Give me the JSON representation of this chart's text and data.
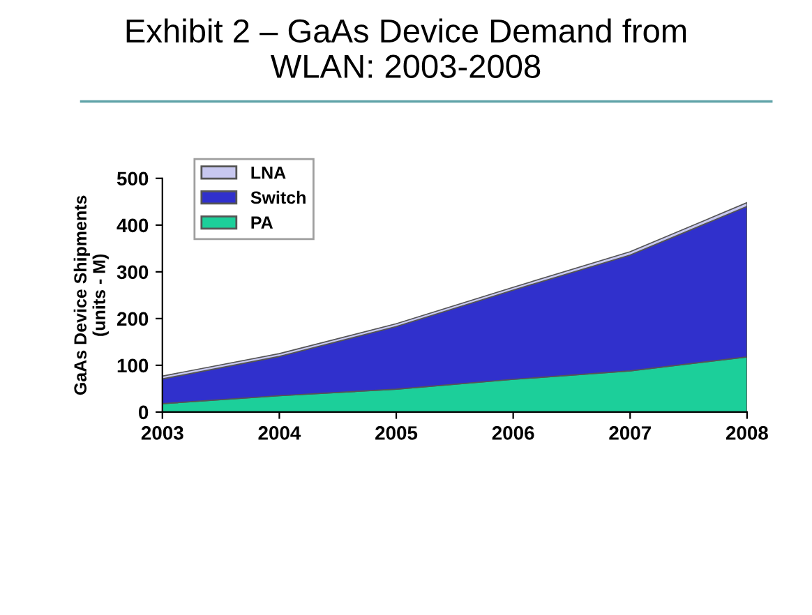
{
  "chart_data": {
    "type": "area",
    "stacked": true,
    "title": "Exhibit 2 – GaAs Device Demand from\nWLAN: 2003-2008",
    "ylabel": "GaAs Device Shipments\n(units - M)",
    "categories": [
      "2003",
      "2004",
      "2005",
      "2006",
      "2007",
      "2008"
    ],
    "series": [
      {
        "name": "PA",
        "color": "#1ccf9a",
        "values": [
          18,
          35,
          49,
          70,
          88,
          118
        ]
      },
      {
        "name": "Switch",
        "color": "#3030cc",
        "values": [
          53,
          84,
          134,
          191,
          248,
          322
        ]
      },
      {
        "name": "LNA",
        "color": "#c8c8f0",
        "values": [
          6,
          6,
          6,
          6,
          7,
          8
        ]
      }
    ],
    "ylim": [
      0,
      500
    ],
    "yticks": [
      0,
      100,
      200,
      300,
      400,
      500
    ],
    "grid": false,
    "legend": "top left"
  }
}
